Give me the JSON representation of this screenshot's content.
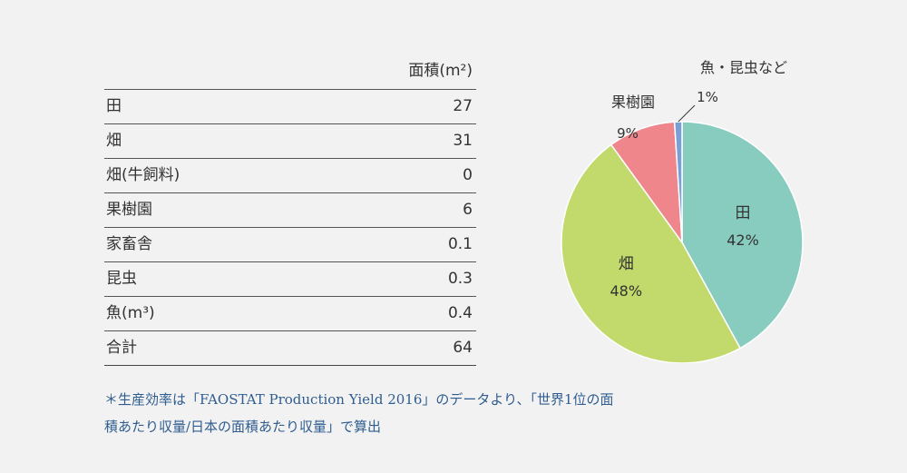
{
  "table": {
    "header": "面積(m²)",
    "rows": [
      {
        "label": "田",
        "value": "27"
      },
      {
        "label": "畑",
        "value": "31"
      },
      {
        "label": "畑(牛飼料)",
        "value": "0"
      },
      {
        "label": "果樹園",
        "value": "6"
      },
      {
        "label": "家畜舎",
        "value": "0.1"
      },
      {
        "label": "昆虫",
        "value": "0.3"
      },
      {
        "label": "魚(m³)",
        "value": "0.4"
      },
      {
        "label": "合計",
        "value": "64"
      }
    ]
  },
  "chart_data": {
    "type": "pie",
    "slices": [
      {
        "label": "田",
        "percent_label": "42%",
        "value": 42,
        "color": "#88ccc0"
      },
      {
        "label": "畑",
        "percent_label": "48%",
        "value": 48,
        "color": "#c2d96b"
      },
      {
        "label": "果樹園",
        "percent_label": "9%",
        "value": 9,
        "color": "#ee868b"
      },
      {
        "label": "魚・昆虫など",
        "percent_label": "1%",
        "value": 1,
        "color": "#7a9fd4"
      }
    ]
  },
  "footnote": {
    "line1": "＊生産効率は「FAOSTAT Production Yield 2016」のデータより、「世界1位の面",
    "line2": "積あたり収量/日本の面積あたり収量」で算出"
  }
}
